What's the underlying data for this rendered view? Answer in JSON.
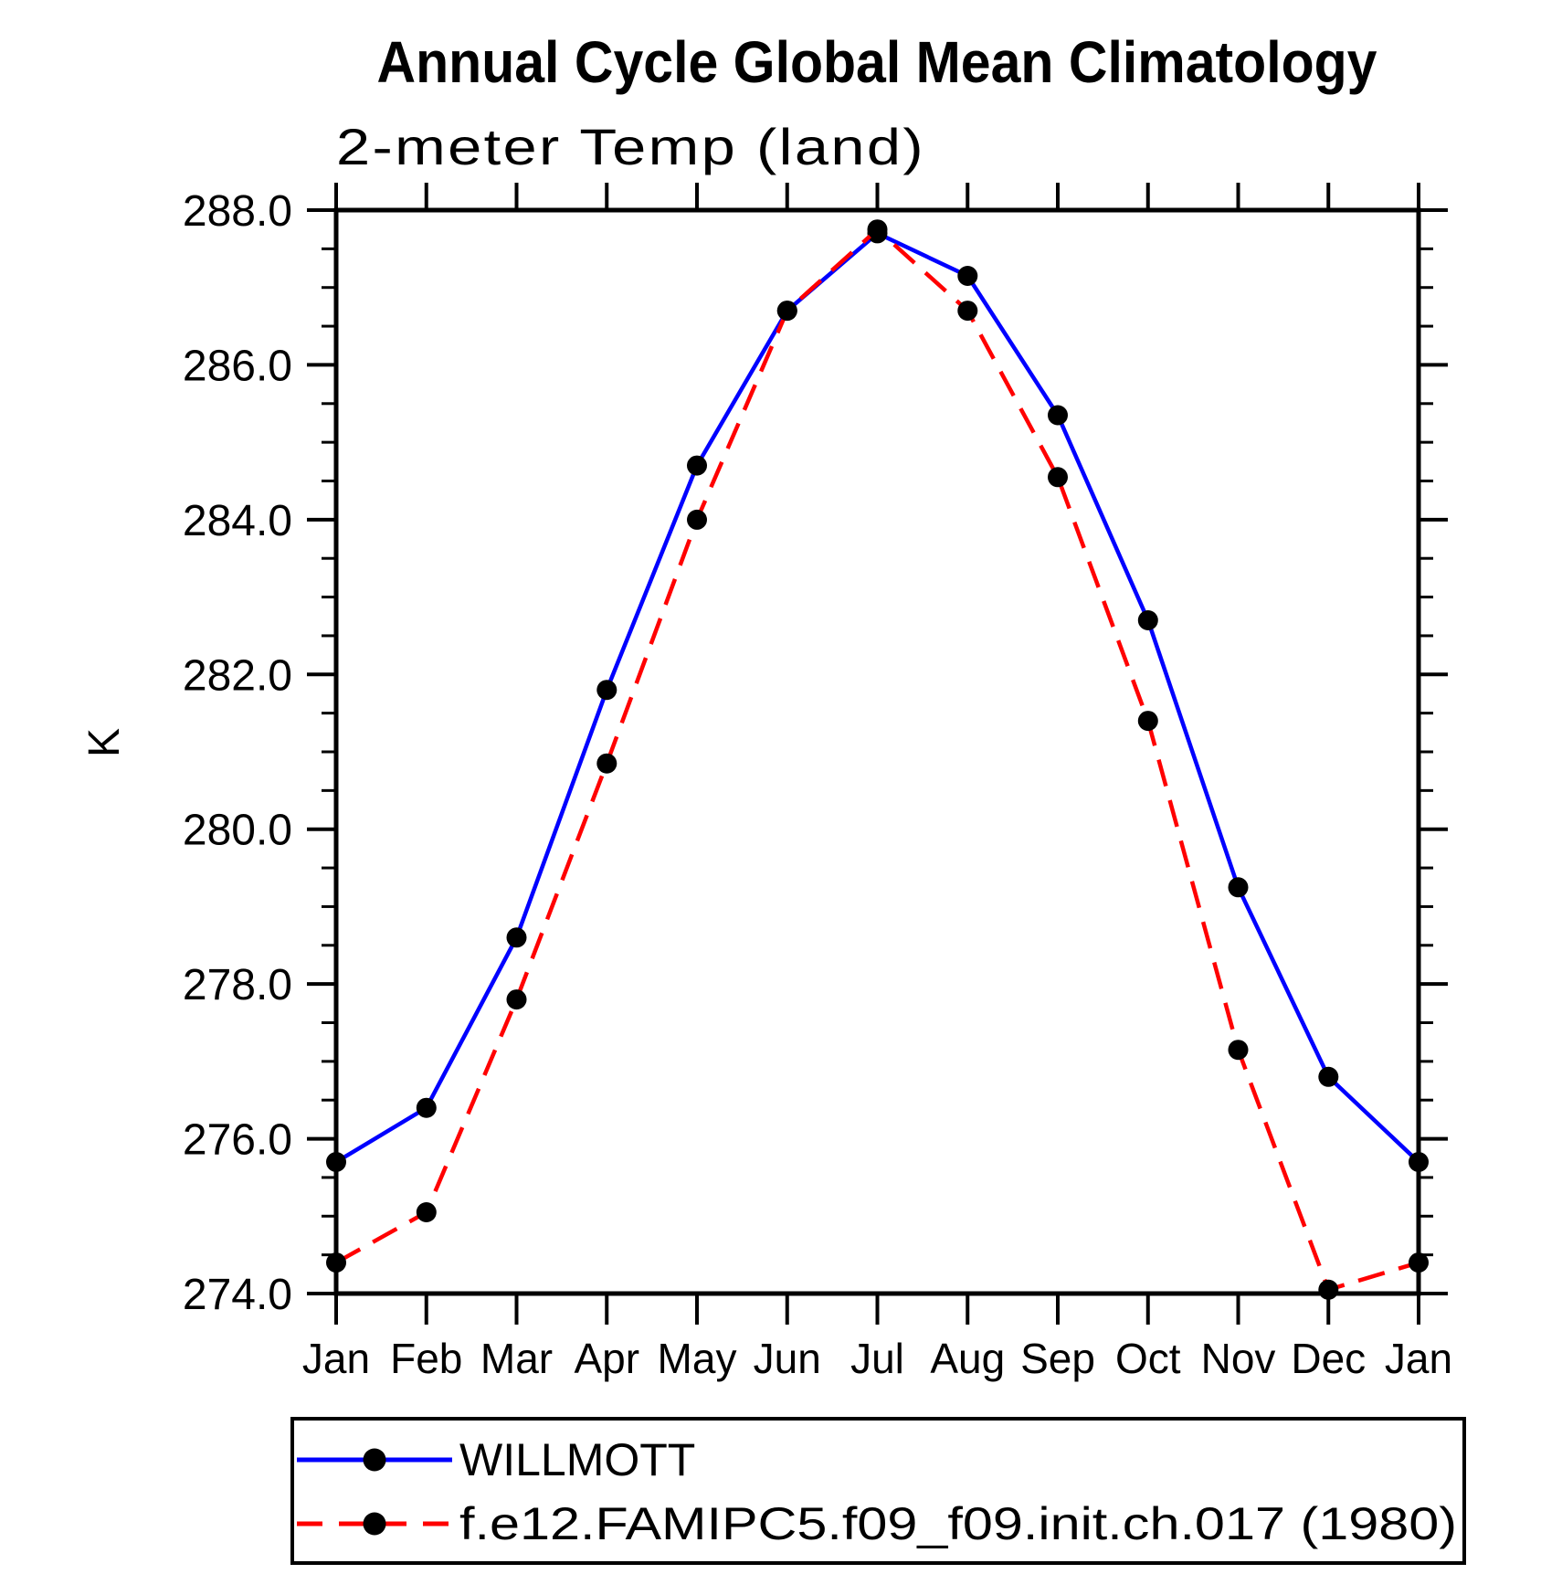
{
  "page": {
    "background_color": "#FFFFFF",
    "text_color": "#000000"
  },
  "chart_data": {
    "type": "line",
    "title": "Annual Cycle Global Mean Climatology",
    "subtitle": "2-meter Temp (land)",
    "ylabel": "K",
    "xlabel": "",
    "categories": [
      "Jan",
      "Feb",
      "Mar",
      "Apr",
      "May",
      "Jun",
      "Jul",
      "Aug",
      "Sep",
      "Oct",
      "Nov",
      "Dec",
      "Jan"
    ],
    "ylim": [
      274.0,
      288.0
    ],
    "ytick_major_interval": 2.0,
    "ytick_minor_interval": 0.5,
    "ytick_labels": [
      "274.0",
      "276.0",
      "278.0",
      "280.0",
      "282.0",
      "284.0",
      "286.0",
      "288.0"
    ],
    "grid": false,
    "legend_position": "bottom-box",
    "axis_color": "#000000",
    "marker": "filled-circle",
    "marker_color": "#000000",
    "series": [
      {
        "name": "WILLMOTT",
        "color": "#0000FF",
        "line_style": "solid",
        "values": [
          275.7,
          276.4,
          278.6,
          281.8,
          284.7,
          286.7,
          287.7,
          287.15,
          285.35,
          282.7,
          279.25,
          276.8,
          275.7
        ]
      },
      {
        "name": "f.e12.FAMIPC5.f09_f09.init.ch.017 (1980)",
        "color": "#FF0000",
        "line_style": "dashed",
        "values": [
          274.4,
          275.05,
          277.8,
          280.85,
          284.0,
          286.7,
          287.75,
          286.7,
          284.55,
          281.4,
          277.15,
          274.05,
          274.4
        ]
      }
    ]
  }
}
